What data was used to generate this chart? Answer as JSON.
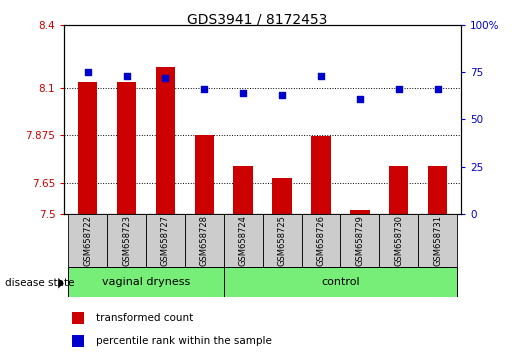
{
  "title": "GDS3941 / 8172453",
  "samples": [
    "GSM658722",
    "GSM658723",
    "GSM658727",
    "GSM658728",
    "GSM658724",
    "GSM658725",
    "GSM658726",
    "GSM658729",
    "GSM658730",
    "GSM658731"
  ],
  "transformed_count": [
    8.13,
    8.13,
    8.2,
    7.875,
    7.73,
    7.67,
    7.87,
    7.52,
    7.73,
    7.73
  ],
  "percentile_rank": [
    75,
    73,
    72,
    66,
    64,
    63,
    73,
    61,
    66,
    66
  ],
  "ylim_left": [
    7.5,
    8.4
  ],
  "ylim_right": [
    0,
    100
  ],
  "yticks_left": [
    7.5,
    7.65,
    7.875,
    8.1,
    8.4
  ],
  "yticks_right": [
    0,
    25,
    50,
    75,
    100
  ],
  "ytick_labels_left": [
    "7.5",
    "7.65",
    "7.875",
    "8.1",
    "8.4"
  ],
  "ytick_labels_right": [
    "0",
    "25",
    "50",
    "75",
    "100%"
  ],
  "bar_color": "#cc0000",
  "dot_color": "#0000cc",
  "bar_bottom": 7.5,
  "group1_label": "vaginal dryness",
  "group2_label": "control",
  "group1_count": 4,
  "group2_count": 6,
  "disease_state_label": "disease state",
  "legend_bar_label": "transformed count",
  "legend_dot_label": "percentile rank within the sample",
  "group_bg_color": "#77ee77",
  "sample_bg_color": "#cccccc",
  "left_axis_color": "#cc0000",
  "right_axis_color": "#0000cc",
  "grid_color": "#000000",
  "title_fontsize": 10
}
